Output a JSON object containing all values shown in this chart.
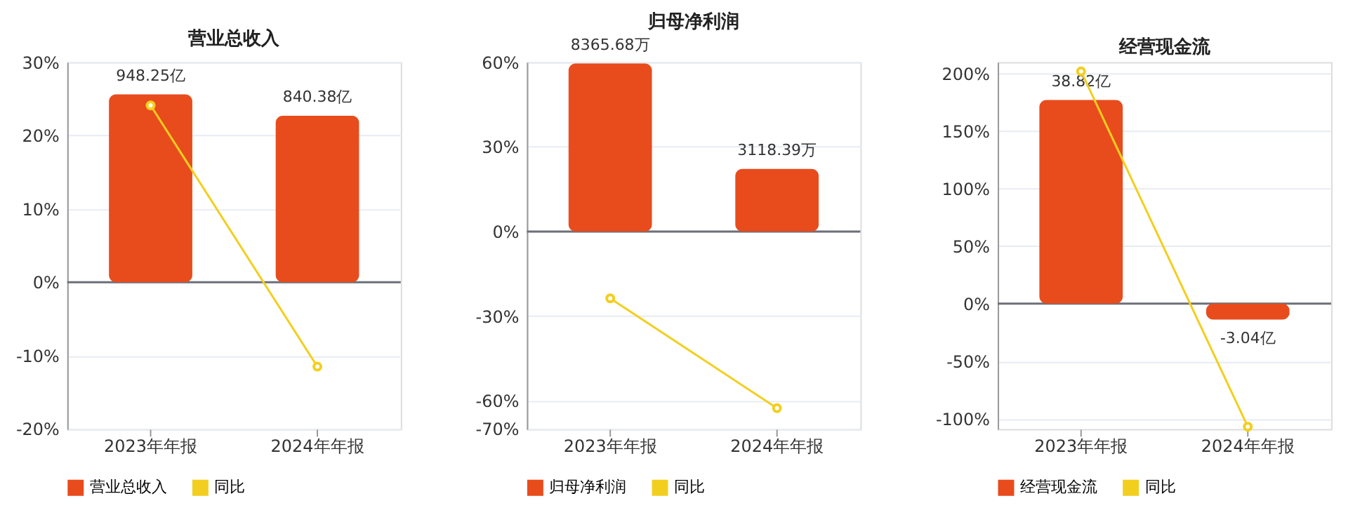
{
  "chart_data": [
    {
      "type": "bar",
      "title": "营业总收入",
      "categories": [
        "2023年年报",
        "2024年年报"
      ],
      "series": [
        {
          "name": "营业总收入",
          "color": "#e84c1d",
          "values": [
            948.25,
            840.38
          ],
          "value_labels": [
            "948.25亿",
            "840.38亿"
          ],
          "axis": "y2"
        },
        {
          "name": "同比",
          "type": "line",
          "color": "#f2cf1f",
          "values": [
            24.1,
            -11.5
          ],
          "marker": "circle"
        }
      ],
      "ylim": [
        -20,
        30
      ],
      "yticks": [
        {
          "value": -20,
          "label": "-20%"
        },
        {
          "value": -10,
          "label": "-10%"
        },
        {
          "value": 0,
          "label": "0%"
        },
        {
          "value": 10,
          "label": "10%"
        },
        {
          "value": 20,
          "label": "20%"
        },
        {
          "value": 30,
          "label": "30%"
        }
      ],
      "y2lim": [
        -740.8,
        1111.2
      ],
      "grid": "y",
      "legend": "bottom"
    },
    {
      "type": "bar",
      "title": "归母净利润",
      "categories": [
        "2023年年报",
        "2024年年报"
      ],
      "series": [
        {
          "name": "归母净利润",
          "color": "#e84c1d",
          "values": [
            8365.68,
            3118.39
          ],
          "value_labels": [
            "8365.68万",
            "3118.39万"
          ],
          "axis": "y2"
        },
        {
          "name": "同比",
          "type": "line",
          "color": "#f2cf1f",
          "values": [
            -23.7,
            -62.6
          ],
          "marker": "circle"
        }
      ],
      "ylim": [
        -70,
        60
      ],
      "yticks": [
        {
          "value": -70,
          "label": "-70%"
        },
        {
          "value": -60,
          "label": "-60%"
        },
        {
          "value": -30,
          "label": "-30%"
        },
        {
          "value": 0,
          "label": "0%"
        },
        {
          "value": 30,
          "label": "30%"
        },
        {
          "value": 60,
          "label": "60%"
        }
      ],
      "y2lim": [
        -9842,
        8436
      ],
      "grid": "y",
      "legend": "bottom"
    },
    {
      "type": "bar",
      "title": "经营现金流",
      "categories": [
        "2023年年报",
        "2024年年报"
      ],
      "series": [
        {
          "name": "经营现金流",
          "color": "#e84c1d",
          "values": [
            38.82,
            -3.04
          ],
          "value_labels": [
            "38.82亿",
            "-3.04亿"
          ],
          "axis": "y2"
        },
        {
          "name": "同比",
          "type": "line",
          "color": "#f2cf1f",
          "values": [
            202,
            -107
          ],
          "marker": "circle"
        }
      ],
      "ylim": [
        -109,
        210
      ],
      "yticks": [
        {
          "value": -100,
          "label": "-100%"
        },
        {
          "value": -50,
          "label": "-50%"
        },
        {
          "value": 0,
          "label": "0%"
        },
        {
          "value": 50,
          "label": "50%"
        },
        {
          "value": 100,
          "label": "100%"
        },
        {
          "value": 150,
          "label": "150%"
        },
        {
          "value": 200,
          "label": "200%"
        }
      ],
      "y2lim": [
        -23.9,
        46.05
      ],
      "grid": "y",
      "legend": "bottom"
    }
  ]
}
